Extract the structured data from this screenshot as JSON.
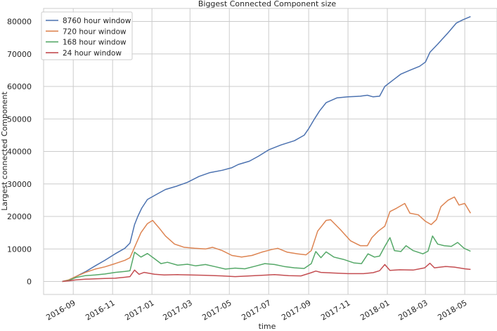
{
  "chart_data": {
    "type": "line",
    "title": "Biggest Connected Component size",
    "xlabel": "time",
    "ylabel": "Largest connected Component",
    "x_tick_labels": [
      "2016-09",
      "2016-11",
      "2017-01",
      "2017-03",
      "2017-05",
      "2017-07",
      "2017-09",
      "2017-11",
      "2018-01",
      "2018-03",
      "2018-05"
    ],
    "x_tick_dates": [
      "2016-09-01",
      "2016-11-01",
      "2017-01-01",
      "2017-03-01",
      "2017-05-01",
      "2017-07-01",
      "2017-09-01",
      "2017-11-01",
      "2018-01-01",
      "2018-03-01",
      "2018-05-01"
    ],
    "xlim": [
      "2016-07-17",
      "2018-06-20"
    ],
    "y_ticks": [
      0,
      10000,
      20000,
      30000,
      40000,
      50000,
      60000,
      70000,
      80000
    ],
    "y_tick_labels": [
      "0",
      "10000",
      "20000",
      "30000",
      "40000",
      "50000",
      "60000",
      "70000",
      "80000"
    ],
    "ylim": [
      -4000,
      84000
    ],
    "grid": true,
    "legend_position": "top-left",
    "series": [
      {
        "name": "8760 hour window",
        "color": "#4c72b0",
        "points": [
          [
            "2016-08-15",
            0
          ],
          [
            "2016-08-25",
            400
          ],
          [
            "2016-09-05",
            1500
          ],
          [
            "2016-09-20",
            3000
          ],
          [
            "2016-10-05",
            4800
          ],
          [
            "2016-10-20",
            6500
          ],
          [
            "2016-11-05",
            8500
          ],
          [
            "2016-11-20",
            10200
          ],
          [
            "2016-11-28",
            11800
          ],
          [
            "2016-12-05",
            17500
          ],
          [
            "2016-12-10",
            20000
          ],
          [
            "2016-12-16",
            22500
          ],
          [
            "2016-12-25",
            25200
          ],
          [
            "2017-01-08",
            26800
          ],
          [
            "2017-01-22",
            28300
          ],
          [
            "2017-02-08",
            29300
          ],
          [
            "2017-02-25",
            30500
          ],
          [
            "2017-03-15",
            32300
          ],
          [
            "2017-04-01",
            33500
          ],
          [
            "2017-04-20",
            34200
          ],
          [
            "2017-05-05",
            35000
          ],
          [
            "2017-05-15",
            36000
          ],
          [
            "2017-06-01",
            37000
          ],
          [
            "2017-06-15",
            38500
          ],
          [
            "2017-07-01",
            40500
          ],
          [
            "2017-07-20",
            42000
          ],
          [
            "2017-08-10",
            43300
          ],
          [
            "2017-08-25",
            45000
          ],
          [
            "2017-09-01",
            47000
          ],
          [
            "2017-09-10",
            50000
          ],
          [
            "2017-09-18",
            52500
          ],
          [
            "2017-09-28",
            55000
          ],
          [
            "2017-10-15",
            56500
          ],
          [
            "2017-11-01",
            56800
          ],
          [
            "2017-11-20",
            57000
          ],
          [
            "2017-12-01",
            57300
          ],
          [
            "2017-12-10",
            56800
          ],
          [
            "2017-12-20",
            57000
          ],
          [
            "2017-12-28",
            60000
          ],
          [
            "2018-01-10",
            62000
          ],
          [
            "2018-01-22",
            63800
          ],
          [
            "2018-02-05",
            65000
          ],
          [
            "2018-02-20",
            66200
          ],
          [
            "2018-03-01",
            67500
          ],
          [
            "2018-03-08",
            70500
          ],
          [
            "2018-03-20",
            73000
          ],
          [
            "2018-04-05",
            76500
          ],
          [
            "2018-04-18",
            79500
          ],
          [
            "2018-04-28",
            80500
          ],
          [
            "2018-05-10",
            81500
          ]
        ]
      },
      {
        "name": "720 hour window",
        "color": "#dd8452",
        "points": [
          [
            "2016-08-15",
            0
          ],
          [
            "2016-08-25",
            500
          ],
          [
            "2016-09-05",
            1500
          ],
          [
            "2016-09-20",
            2800
          ],
          [
            "2016-10-05",
            3800
          ],
          [
            "2016-10-20",
            4500
          ],
          [
            "2016-11-05",
            5500
          ],
          [
            "2016-11-20",
            6500
          ],
          [
            "2016-11-28",
            7300
          ],
          [
            "2016-12-05",
            10500
          ],
          [
            "2016-12-15",
            15000
          ],
          [
            "2016-12-25",
            17800
          ],
          [
            "2017-01-02",
            18800
          ],
          [
            "2017-01-12",
            16500
          ],
          [
            "2017-01-22",
            14000
          ],
          [
            "2017-02-05",
            11500
          ],
          [
            "2017-02-20",
            10500
          ],
          [
            "2017-03-08",
            10200
          ],
          [
            "2017-03-25",
            10000
          ],
          [
            "2017-04-05",
            10500
          ],
          [
            "2017-04-20",
            9500
          ],
          [
            "2017-05-05",
            8000
          ],
          [
            "2017-05-20",
            7500
          ],
          [
            "2017-06-05",
            8000
          ],
          [
            "2017-06-20",
            9000
          ],
          [
            "2017-07-05",
            9800
          ],
          [
            "2017-07-15",
            10200
          ],
          [
            "2017-07-30",
            9000
          ],
          [
            "2017-08-15",
            8500
          ],
          [
            "2017-08-28",
            8200
          ],
          [
            "2017-09-05",
            9500
          ],
          [
            "2017-09-15",
            15500
          ],
          [
            "2017-09-28",
            18800
          ],
          [
            "2017-10-05",
            19000
          ],
          [
            "2017-10-20",
            16000
          ],
          [
            "2017-11-05",
            12500
          ],
          [
            "2017-11-20",
            11000
          ],
          [
            "2017-12-01",
            11000
          ],
          [
            "2017-12-08",
            13500
          ],
          [
            "2017-12-18",
            15500
          ],
          [
            "2017-12-28",
            17000
          ],
          [
            "2018-01-05",
            21500
          ],
          [
            "2018-01-15",
            22500
          ],
          [
            "2018-01-28",
            24000
          ],
          [
            "2018-02-05",
            21000
          ],
          [
            "2018-02-18",
            20500
          ],
          [
            "2018-03-01",
            18500
          ],
          [
            "2018-03-10",
            17500
          ],
          [
            "2018-03-18",
            19000
          ],
          [
            "2018-03-25",
            23000
          ],
          [
            "2018-04-05",
            25000
          ],
          [
            "2018-04-15",
            26000
          ],
          [
            "2018-04-22",
            23500
          ],
          [
            "2018-05-01",
            24000
          ],
          [
            "2018-05-10",
            21000
          ]
        ]
      },
      {
        "name": "168 hour window",
        "color": "#55a868",
        "points": [
          [
            "2016-08-15",
            0
          ],
          [
            "2016-08-25",
            300
          ],
          [
            "2016-09-05",
            1200
          ],
          [
            "2016-09-20",
            1800
          ],
          [
            "2016-10-05",
            2000
          ],
          [
            "2016-10-20",
            2300
          ],
          [
            "2016-11-05",
            2800
          ],
          [
            "2016-11-20",
            3100
          ],
          [
            "2016-11-28",
            3300
          ],
          [
            "2016-12-05",
            9000
          ],
          [
            "2016-12-15",
            7500
          ],
          [
            "2016-12-25",
            8600
          ],
          [
            "2017-01-05",
            7000
          ],
          [
            "2017-01-15",
            5500
          ],
          [
            "2017-01-25",
            5900
          ],
          [
            "2017-02-10",
            5000
          ],
          [
            "2017-02-25",
            5300
          ],
          [
            "2017-03-10",
            4800
          ],
          [
            "2017-03-25",
            5200
          ],
          [
            "2017-04-10",
            4500
          ],
          [
            "2017-04-25",
            3800
          ],
          [
            "2017-05-10",
            4100
          ],
          [
            "2017-05-25",
            3900
          ],
          [
            "2017-06-10",
            4700
          ],
          [
            "2017-06-25",
            5500
          ],
          [
            "2017-07-10",
            5200
          ],
          [
            "2017-07-25",
            4600
          ],
          [
            "2017-08-10",
            4200
          ],
          [
            "2017-08-25",
            4000
          ],
          [
            "2017-09-05",
            5500
          ],
          [
            "2017-09-12",
            9200
          ],
          [
            "2017-09-20",
            7300
          ],
          [
            "2017-09-28",
            9100
          ],
          [
            "2017-10-10",
            7500
          ],
          [
            "2017-10-25",
            6800
          ],
          [
            "2017-11-10",
            5700
          ],
          [
            "2017-11-22",
            5500
          ],
          [
            "2017-12-02",
            8500
          ],
          [
            "2017-12-12",
            7500
          ],
          [
            "2017-12-20",
            7800
          ],
          [
            "2017-12-28",
            10800
          ],
          [
            "2018-01-05",
            13500
          ],
          [
            "2018-01-12",
            9500
          ],
          [
            "2018-01-22",
            9200
          ],
          [
            "2018-01-30",
            11000
          ],
          [
            "2018-02-10",
            9500
          ],
          [
            "2018-02-25",
            8500
          ],
          [
            "2018-03-05",
            9300
          ],
          [
            "2018-03-12",
            14000
          ],
          [
            "2018-03-20",
            11500
          ],
          [
            "2018-03-30",
            11000
          ],
          [
            "2018-04-10",
            10800
          ],
          [
            "2018-04-20",
            12000
          ],
          [
            "2018-04-30",
            10200
          ],
          [
            "2018-05-10",
            9300
          ]
        ]
      },
      {
        "name": "24 hour window",
        "color": "#c44e52",
        "points": [
          [
            "2016-08-15",
            0
          ],
          [
            "2016-08-25",
            200
          ],
          [
            "2016-09-05",
            500
          ],
          [
            "2016-09-20",
            700
          ],
          [
            "2016-10-05",
            800
          ],
          [
            "2016-10-20",
            900
          ],
          [
            "2016-11-05",
            1000
          ],
          [
            "2016-11-20",
            1300
          ],
          [
            "2016-11-28",
            1500
          ],
          [
            "2016-12-05",
            3500
          ],
          [
            "2016-12-12",
            2200
          ],
          [
            "2016-12-20",
            2800
          ],
          [
            "2017-01-05",
            2200
          ],
          [
            "2017-01-20",
            2000
          ],
          [
            "2017-02-10",
            2100
          ],
          [
            "2017-03-01",
            2000
          ],
          [
            "2017-03-25",
            1900
          ],
          [
            "2017-04-20",
            1700
          ],
          [
            "2017-05-10",
            1500
          ],
          [
            "2017-06-01",
            1700
          ],
          [
            "2017-06-20",
            1900
          ],
          [
            "2017-07-10",
            2100
          ],
          [
            "2017-08-01",
            1800
          ],
          [
            "2017-08-20",
            1700
          ],
          [
            "2017-09-05",
            2700
          ],
          [
            "2017-09-12",
            3200
          ],
          [
            "2017-09-20",
            2800
          ],
          [
            "2017-10-10",
            2600
          ],
          [
            "2017-11-01",
            2400
          ],
          [
            "2017-11-25",
            2400
          ],
          [
            "2017-12-10",
            2700
          ],
          [
            "2017-12-20",
            3300
          ],
          [
            "2017-12-28",
            5200
          ],
          [
            "2018-01-05",
            3400
          ],
          [
            "2018-01-20",
            3600
          ],
          [
            "2018-02-10",
            3500
          ],
          [
            "2018-02-28",
            4200
          ],
          [
            "2018-03-08",
            5600
          ],
          [
            "2018-03-15",
            4200
          ],
          [
            "2018-04-01",
            4600
          ],
          [
            "2018-04-15",
            4400
          ],
          [
            "2018-05-01",
            3900
          ],
          [
            "2018-05-10",
            3700
          ]
        ]
      }
    ]
  }
}
